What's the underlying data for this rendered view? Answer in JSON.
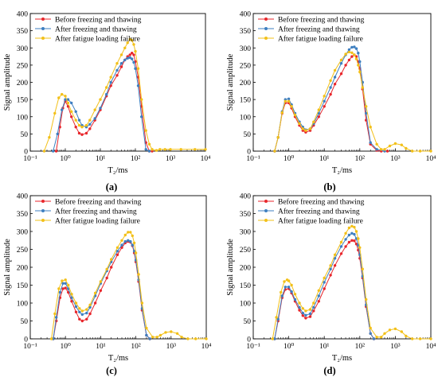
{
  "colors": {
    "before": "#e8262b",
    "after_ft": "#3e7fc0",
    "after_fatigue": "#f2c019",
    "axis": "#000000"
  },
  "chart_data": [
    {
      "type": "line",
      "panel_label": "(a)",
      "xlabel": "T₂/ms",
      "ylabel": "Signal amplitude",
      "xscale": "log",
      "xlim": [
        0.1,
        10000
      ],
      "ylim": [
        0,
        400
      ],
      "xticks": [
        "10⁻¹",
        "10⁰",
        "10¹",
        "10²",
        "10³",
        "10⁴"
      ],
      "yticks": [
        "0",
        "50",
        "100",
        "150",
        "200",
        "250",
        "300",
        "350",
        "400"
      ],
      "legend_position": "top-left",
      "series": [
        {
          "name": "Before freezing and thawing",
          "color": "#e8262b",
          "x": [
            0.55,
            0.7,
            0.85,
            1.0,
            1.2,
            1.5,
            2,
            2.5,
            3,
            4,
            5,
            7,
            10,
            15,
            20,
            30,
            40,
            50,
            60,
            70,
            80,
            90,
            100,
            120,
            150,
            200,
            250,
            300
          ],
          "y": [
            0,
            70,
            125,
            145,
            130,
            100,
            70,
            52,
            48,
            52,
            65,
            90,
            120,
            160,
            190,
            220,
            245,
            265,
            275,
            280,
            285,
            280,
            260,
            215,
            130,
            25,
            0,
            0
          ]
        },
        {
          "name": "After freezing and thawing",
          "color": "#3e7fc0",
          "x": [
            0.45,
            0.6,
            0.8,
            1.0,
            1.2,
            1.5,
            2,
            2.5,
            3,
            4,
            5,
            7,
            10,
            15,
            20,
            30,
            40,
            50,
            60,
            70,
            80,
            90,
            100,
            120,
            150,
            200,
            250
          ],
          "y": [
            0,
            50,
            120,
            150,
            150,
            140,
            115,
            90,
            75,
            70,
            78,
            95,
            125,
            165,
            200,
            235,
            255,
            265,
            270,
            272,
            268,
            258,
            240,
            190,
            100,
            5,
            0
          ]
        },
        {
          "name": "After fatigue loading failure",
          "color": "#f2c019",
          "x": [
            0.25,
            0.35,
            0.5,
            0.65,
            0.8,
            1.0,
            1.2,
            1.5,
            2,
            2.5,
            3,
            4,
            5,
            7,
            10,
            15,
            20,
            30,
            40,
            50,
            60,
            70,
            80,
            90,
            100,
            120,
            150,
            200,
            250,
            300,
            400,
            500,
            700,
            1000,
            2000,
            5000,
            10000
          ],
          "y": [
            0,
            40,
            110,
            155,
            165,
            160,
            140,
            115,
            90,
            75,
            70,
            75,
            90,
            120,
            150,
            185,
            215,
            255,
            280,
            300,
            315,
            325,
            322,
            310,
            290,
            240,
            150,
            60,
            20,
            5,
            2,
            5,
            5,
            5,
            5,
            5,
            5
          ]
        }
      ]
    },
    {
      "type": "line",
      "panel_label": "(b)",
      "xlabel": "T₂/ms",
      "ylabel": "Signal amplitude",
      "xscale": "log",
      "xlim": [
        0.1,
        10000
      ],
      "ylim": [
        0,
        400
      ],
      "xticks": [
        "10⁻¹",
        "10⁰",
        "10¹",
        "10²",
        "10³",
        "10⁴"
      ],
      "yticks": [
        "0",
        "50",
        "100",
        "150",
        "200",
        "250",
        "300",
        "350",
        "400"
      ],
      "legend_position": "top-right",
      "series": [
        {
          "name": "Before freezing and thawing",
          "color": "#e8262b",
          "x": [
            0.4,
            0.5,
            0.65,
            0.8,
            1.0,
            1.2,
            1.5,
            2,
            2.5,
            3,
            4,
            5,
            7,
            10,
            15,
            20,
            30,
            40,
            50,
            60,
            70,
            80,
            90,
            100,
            120,
            150,
            200,
            300,
            400,
            600
          ],
          "y": [
            0,
            40,
            110,
            140,
            140,
            125,
            100,
            75,
            60,
            55,
            60,
            75,
            100,
            130,
            165,
            195,
            225,
            250,
            265,
            275,
            280,
            275,
            260,
            240,
            180,
            90,
            20,
            2,
            0,
            0
          ]
        },
        {
          "name": "After freezing and thawing",
          "color": "#3e7fc0",
          "x": [
            0.4,
            0.5,
            0.65,
            0.8,
            1.0,
            1.2,
            1.5,
            2,
            2.5,
            3,
            4,
            5,
            7,
            10,
            15,
            20,
            30,
            40,
            50,
            60,
            70,
            80,
            90,
            100,
            120,
            150,
            200,
            300,
            500
          ],
          "y": [
            0,
            40,
            115,
            150,
            152,
            135,
            110,
            85,
            70,
            62,
            65,
            80,
            110,
            145,
            185,
            215,
            255,
            280,
            295,
            302,
            303,
            298,
            285,
            260,
            200,
            110,
            25,
            5,
            0
          ]
        },
        {
          "name": "After fatigue loading failure",
          "color": "#f2c019",
          "x": [
            0.4,
            0.5,
            0.65,
            0.8,
            1.0,
            1.2,
            1.5,
            2,
            2.5,
            3,
            4,
            5,
            7,
            10,
            15,
            20,
            30,
            40,
            50,
            60,
            70,
            80,
            90,
            100,
            120,
            150,
            200,
            300,
            400,
            500,
            700,
            1000,
            1500,
            2000,
            3000,
            5000,
            10000
          ],
          "y": [
            0,
            40,
            112,
            145,
            145,
            130,
            105,
            80,
            65,
            60,
            65,
            85,
            120,
            160,
            205,
            235,
            265,
            282,
            288,
            286,
            280,
            268,
            250,
            230,
            185,
            130,
            70,
            20,
            5,
            5,
            15,
            22,
            18,
            8,
            0,
            0,
            0
          ]
        }
      ]
    },
    {
      "type": "line",
      "panel_label": "(c)",
      "xlabel": "T₂/ms",
      "ylabel": "Signal amplitude",
      "xscale": "log",
      "xlim": [
        0.1,
        10000
      ],
      "ylim": [
        0,
        400
      ],
      "xticks": [
        "10⁻¹",
        "10⁰",
        "10¹",
        "10²",
        "10³",
        "10⁴"
      ],
      "yticks": [
        "0",
        "50",
        "100",
        "150",
        "200",
        "250",
        "300",
        "350",
        "400"
      ],
      "legend_position": "top-right",
      "series": [
        {
          "name": "Before freezing and thawing",
          "color": "#e8262b",
          "x": [
            0.45,
            0.55,
            0.7,
            0.85,
            1.0,
            1.2,
            1.5,
            2,
            2.5,
            3,
            4,
            5,
            7,
            10,
            15,
            20,
            30,
            40,
            50,
            60,
            70,
            80,
            90,
            100,
            120,
            150,
            200,
            250
          ],
          "y": [
            0,
            50,
            115,
            140,
            142,
            130,
            105,
            75,
            55,
            50,
            55,
            70,
            100,
            135,
            170,
            200,
            235,
            255,
            268,
            272,
            270,
            260,
            240,
            215,
            160,
            80,
            10,
            0
          ]
        },
        {
          "name": "After freezing and thawing",
          "color": "#3e7fc0",
          "x": [
            0.45,
            0.55,
            0.7,
            0.85,
            1.0,
            1.2,
            1.5,
            2,
            2.5,
            3,
            4,
            5,
            7,
            10,
            15,
            20,
            30,
            40,
            50,
            60,
            70,
            80,
            90,
            100,
            120,
            150,
            200,
            250
          ],
          "y": [
            0,
            60,
            130,
            155,
            155,
            140,
            115,
            90,
            75,
            68,
            72,
            88,
            120,
            155,
            190,
            215,
            245,
            262,
            272,
            275,
            272,
            262,
            245,
            220,
            165,
            85,
            10,
            0
          ]
        },
        {
          "name": "After fatigue loading failure",
          "color": "#f2c019",
          "x": [
            0.4,
            0.5,
            0.65,
            0.8,
            1.0,
            1.2,
            1.5,
            2,
            2.5,
            3,
            4,
            5,
            7,
            10,
            15,
            20,
            30,
            40,
            50,
            60,
            70,
            80,
            90,
            100,
            120,
            150,
            200,
            300,
            400,
            500,
            700,
            1000,
            1500,
            2000,
            3000,
            5000,
            10000
          ],
          "y": [
            0,
            70,
            140,
            162,
            165,
            150,
            125,
            100,
            85,
            78,
            82,
            95,
            128,
            160,
            195,
            222,
            255,
            275,
            290,
            298,
            298,
            288,
            268,
            240,
            180,
            100,
            30,
            5,
            5,
            10,
            18,
            20,
            15,
            5,
            0,
            0,
            0
          ]
        }
      ]
    },
    {
      "type": "line",
      "panel_label": "(d)",
      "xlabel": "T₂/ms",
      "ylabel": "Signal amplitude",
      "xscale": "log",
      "xlim": [
        0.1,
        10000
      ],
      "ylim": [
        0,
        400
      ],
      "xticks": [
        "10⁻¹",
        "10⁰",
        "10¹",
        "10²",
        "10³",
        "10⁴"
      ],
      "yticks": [
        "0",
        "50",
        "100",
        "150",
        "200",
        "250",
        "300",
        "350",
        "400"
      ],
      "legend_position": "top-right",
      "series": [
        {
          "name": "Before freezing and thawing",
          "color": "#e8262b",
          "x": [
            0.4,
            0.5,
            0.65,
            0.8,
            1.0,
            1.2,
            1.5,
            2,
            2.5,
            3,
            4,
            5,
            7,
            10,
            15,
            20,
            30,
            40,
            50,
            60,
            70,
            80,
            90,
            100,
            120,
            150,
            200,
            250
          ],
          "y": [
            0,
            50,
            115,
            138,
            140,
            128,
            105,
            80,
            65,
            58,
            62,
            78,
            105,
            140,
            178,
            205,
            238,
            258,
            270,
            275,
            274,
            265,
            248,
            225,
            170,
            90,
            15,
            0
          ]
        },
        {
          "name": "After freezing and thawing",
          "color": "#3e7fc0",
          "x": [
            0.4,
            0.5,
            0.65,
            0.8,
            1.0,
            1.2,
            1.5,
            2,
            2.5,
            3,
            4,
            5,
            7,
            10,
            15,
            20,
            30,
            40,
            50,
            60,
            70,
            80,
            90,
            100,
            120,
            150,
            200,
            250
          ],
          "y": [
            0,
            55,
            120,
            145,
            145,
            132,
            110,
            88,
            72,
            66,
            70,
            88,
            120,
            158,
            195,
            225,
            258,
            278,
            290,
            295,
            292,
            280,
            262,
            235,
            175,
            95,
            15,
            0
          ]
        },
        {
          "name": "After fatigue loading failure",
          "color": "#f2c019",
          "x": [
            0.35,
            0.45,
            0.6,
            0.75,
            0.9,
            1.0,
            1.2,
            1.5,
            2,
            2.5,
            3,
            4,
            5,
            7,
            10,
            15,
            20,
            30,
            40,
            50,
            60,
            70,
            80,
            90,
            100,
            120,
            150,
            200,
            300,
            400,
            500,
            700,
            1000,
            1500,
            2000,
            3000,
            5000,
            10000
          ],
          "y": [
            0,
            60,
            130,
            160,
            165,
            162,
            150,
            125,
            100,
            85,
            78,
            82,
            100,
            135,
            170,
            205,
            235,
            270,
            295,
            310,
            315,
            312,
            300,
            280,
            255,
            195,
            110,
            30,
            5,
            5,
            15,
            25,
            28,
            20,
            8,
            0,
            0,
            0
          ]
        }
      ]
    }
  ]
}
